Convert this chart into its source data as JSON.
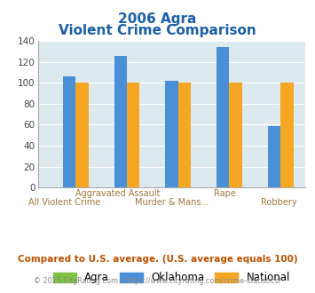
{
  "title_line1": "2006 Agra",
  "title_line2": "Violent Crime Comparison",
  "categories": [
    "All Violent Crime",
    "Aggravated Assault",
    "Murder & Mans...",
    "Rape",
    "Robbery"
  ],
  "top_labels": [
    "",
    "Aggravated Assault",
    "",
    "Rape",
    ""
  ],
  "bot_labels": [
    "All Violent Crime",
    "",
    "Murder & Mans...",
    "",
    "Robbery"
  ],
  "agra": [
    0,
    0,
    0,
    0,
    0
  ],
  "oklahoma": [
    106,
    126,
    102,
    134,
    59
  ],
  "national": [
    100,
    100,
    100,
    100,
    100
  ],
  "bar_color_agra": "#7dc242",
  "bar_color_oklahoma": "#4a90d9",
  "bar_color_national": "#f5a623",
  "ylim": [
    0,
    140
  ],
  "yticks": [
    0,
    20,
    40,
    60,
    80,
    100,
    120,
    140
  ],
  "bg_color": "#dce9ef",
  "title_color": "#1a5fa8",
  "xlabel_color": "#a07840",
  "footer_text": "Compared to U.S. average. (U.S. average equals 100)",
  "footer_color": "#c05000",
  "copyright_text": "© 2025 CityRating.com - https://www.cityrating.com/crime-statistics/",
  "copyright_color": "#888888",
  "legend_labels": [
    "Agra",
    "Oklahoma",
    "National"
  ]
}
